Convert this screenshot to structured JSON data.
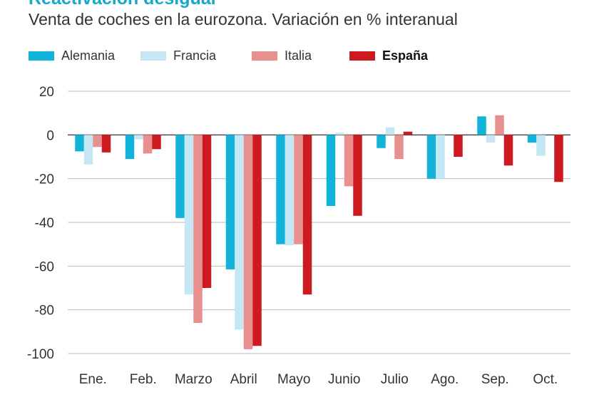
{
  "header": {
    "title": "Reactivación desigual",
    "subtitle": "Venta de coches en la eurozona. Variación en % interanual"
  },
  "chart_data": {
    "type": "bar",
    "categories": [
      "Ene.",
      "Feb.",
      "Marzo",
      "Abril",
      "Mayo",
      "Junio",
      "Julio",
      "Ago.",
      "Sep.",
      "Oct."
    ],
    "series": [
      {
        "name": "Alemania",
        "color": "#12b3d8",
        "values": [
          -7.5,
          -11,
          -38,
          -61.5,
          -50,
          -32.5,
          -6,
          -20,
          8.5,
          -3.5
        ]
      },
      {
        "name": "Francia",
        "color": "#c5e6f3",
        "values": [
          -13.5,
          -2,
          -73,
          -89,
          -50.5,
          1,
          3.5,
          -20,
          -3.5,
          -9.5
        ]
      },
      {
        "name": "Italia",
        "color": "#e8908e",
        "values": [
          -5.5,
          -8.5,
          -86,
          -98,
          -50,
          -23.5,
          -11,
          0,
          9,
          0
        ]
      },
      {
        "name": "España",
        "color": "#cc1a20",
        "values": [
          -8,
          -6.5,
          -70,
          -96.5,
          -73,
          -37,
          1.5,
          -10,
          -14,
          -21.5
        ]
      }
    ],
    "yticks": [
      "20",
      "0",
      "-20",
      "-40",
      "-60",
      "-80",
      "-100"
    ],
    "ylim": [
      -100,
      20
    ],
    "grid": true,
    "legend_position": "top",
    "legend_bold": "España"
  }
}
